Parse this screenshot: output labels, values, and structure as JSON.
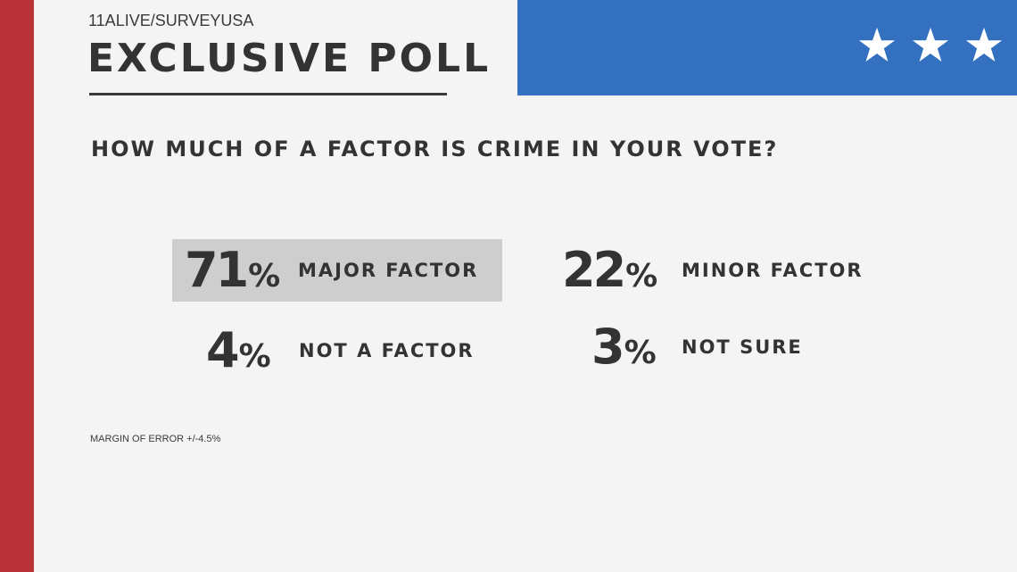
{
  "header": {
    "source": "11ALIVE/SURVEYUSA",
    "title": "EXCLUSIVE POLL"
  },
  "banner": {
    "icons": [
      "star-icon",
      "star-icon",
      "star-icon"
    ],
    "color": "#3370c0"
  },
  "accent_color": "#b93237",
  "question": "HOW MUCH OF A FACTOR IS CRIME IN YOUR VOTE?",
  "results": [
    {
      "value": "71",
      "unit": "%",
      "label": "MAJOR FACTOR",
      "highlighted": true
    },
    {
      "value": "22",
      "unit": "%",
      "label": "MINOR FACTOR",
      "highlighted": false
    },
    {
      "value": "4",
      "unit": "%",
      "label": "NOT A FACTOR",
      "highlighted": false
    },
    {
      "value": "3",
      "unit": "%",
      "label": "NOT SURE",
      "highlighted": false
    }
  ],
  "footer": {
    "margin_of_error": "MARGIN OF ERROR +/-4.5%"
  }
}
